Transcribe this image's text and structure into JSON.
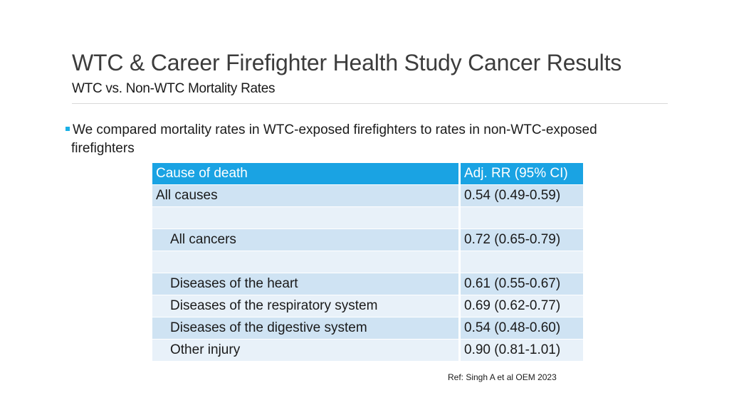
{
  "title": "WTC & Career Firefighter Health Study Cancer Results",
  "subtitle": "WTC vs. Non-WTC Mortality Rates",
  "bullet": {
    "line1": "We compared mortality rates in WTC-exposed firefighters to rates in non-WTC-exposed",
    "line2": "firefighters"
  },
  "table": {
    "headers": [
      "Cause of death",
      "Adj. RR (95% CI)"
    ],
    "rows": [
      {
        "cause": "All causes",
        "rr": "0.54 (0.49-0.59)"
      },
      {
        "cause": "",
        "rr": ""
      },
      {
        "cause": "All cancers",
        "rr": "0.72 (0.65-0.79)"
      },
      {
        "cause": "",
        "rr": ""
      },
      {
        "cause": "Diseases of the heart",
        "rr": "0.61 (0.55-0.67)"
      },
      {
        "cause": "Diseases of the respiratory system",
        "rr": "0.69 (0.62-0.77)"
      },
      {
        "cause": "Diseases of the digestive system",
        "rr": "0.54 (0.48-0.60)"
      },
      {
        "cause": "Other injury",
        "rr": "0.90 (0.81-1.01)"
      }
    ]
  },
  "reference": "Ref: Singh A et al OEM 2023",
  "colors": {
    "header": "#1aa3e3",
    "row_odd": "#cfe3f3",
    "row_even": "#e8f1f9",
    "bullet": "#1ab0e6"
  }
}
